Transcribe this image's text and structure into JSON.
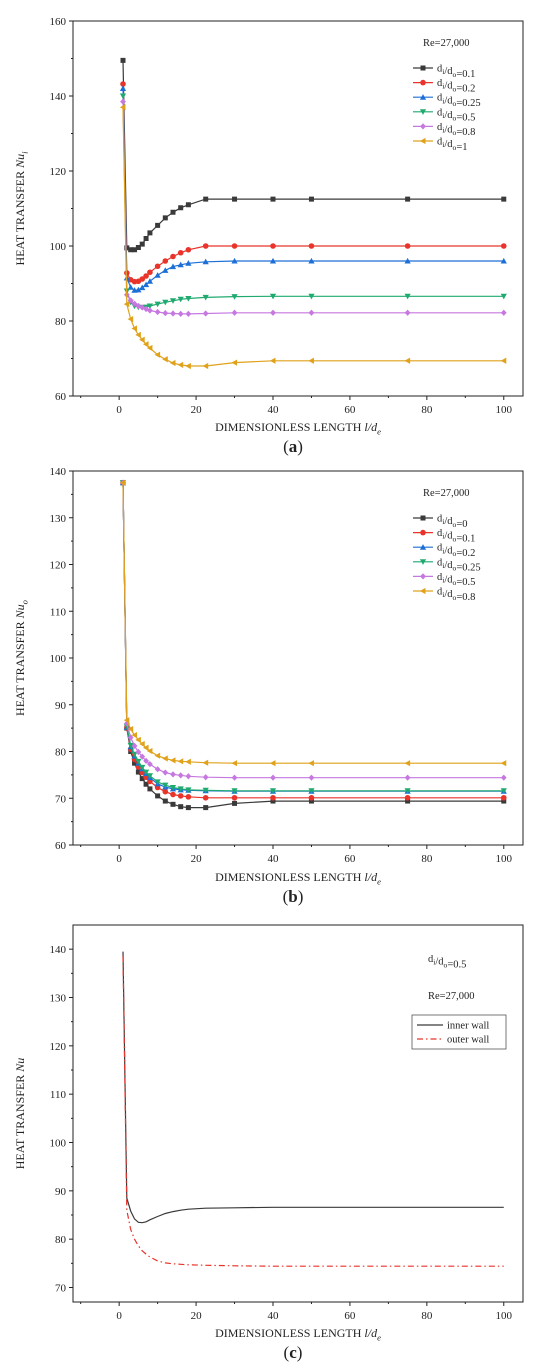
{
  "chart_data": [
    {
      "type": "line",
      "panel_label": "(a)",
      "xlabel": "DIMENSIONLESS LENGTH l/d",
      "xlabel_sub": "e",
      "ylabel": "HEAT TRANSFER Nu",
      "ylabel_sub": "i",
      "annotation": "Re=27,000",
      "xlim": [
        -12,
        105
      ],
      "ylim": [
        60,
        160
      ],
      "xticks": [
        0,
        20,
        40,
        60,
        80,
        100
      ],
      "yticks": [
        60,
        80,
        100,
        120,
        140,
        160
      ],
      "legend_location": "upper-right",
      "series": [
        {
          "name": "d_i/d_o=0.1",
          "color": "#3a3a3a",
          "marker": "square",
          "style": "solid",
          "x": [
            1,
            2,
            3,
            4,
            5,
            6,
            7,
            8,
            10,
            12,
            14,
            16,
            18,
            22.5,
            30,
            40,
            50,
            75,
            100
          ],
          "y": [
            149.5,
            99.5,
            99,
            99,
            99.6,
            100.5,
            102,
            103.5,
            105.5,
            107.5,
            109,
            110.2,
            111,
            112.5,
            112.5,
            112.5,
            112.5,
            112.5,
            112.5
          ]
        },
        {
          "name": "d_i/d_o=0.2",
          "color": "#e8342a",
          "marker": "circle",
          "style": "solid",
          "x": [
            1,
            2,
            3,
            4,
            5,
            6,
            7,
            8,
            10,
            12,
            14,
            16,
            18,
            22.5,
            30,
            40,
            50,
            75,
            100
          ],
          "y": [
            143.2,
            92.8,
            91,
            90.5,
            90.6,
            91.2,
            92,
            93,
            94.6,
            96,
            97.2,
            98.2,
            99,
            100,
            100,
            100,
            100,
            100,
            100
          ]
        },
        {
          "name": "d_i/d_o=0.25",
          "color": "#1c6fd6",
          "marker": "triangle-up",
          "style": "solid",
          "x": [
            1,
            2,
            3,
            4,
            5,
            6,
            7,
            8,
            10,
            12,
            14,
            16,
            18,
            22.5,
            30,
            40,
            50,
            75,
            100
          ],
          "y": [
            142,
            91.5,
            89,
            88.2,
            88.3,
            88.9,
            89.7,
            90.6,
            92.2,
            93.5,
            94.5,
            95,
            95.4,
            95.8,
            96,
            96,
            96,
            96,
            96
          ]
        },
        {
          "name": "d_i/d_o=0.5",
          "color": "#1faa6f",
          "marker": "triangle-down",
          "style": "solid",
          "x": [
            1,
            2,
            3,
            4,
            5,
            6,
            7,
            8,
            10,
            12,
            14,
            16,
            18,
            22.5,
            30,
            40,
            50,
            75,
            100
          ],
          "y": [
            140,
            88,
            85,
            84,
            83.7,
            83.6,
            83.7,
            84,
            84.5,
            85,
            85.4,
            85.8,
            86,
            86.3,
            86.5,
            86.6,
            86.6,
            86.6,
            86.6
          ]
        },
        {
          "name": "d_i/d_o=0.8",
          "color": "#c678e0",
          "marker": "diamond",
          "style": "solid",
          "x": [
            1,
            2,
            3,
            4,
            5,
            6,
            7,
            8,
            10,
            12,
            14,
            16,
            18,
            22.5,
            30,
            40,
            50,
            75,
            100
          ],
          "y": [
            138.5,
            87,
            85.5,
            84.6,
            84,
            83.6,
            83.2,
            82.8,
            82.4,
            82.1,
            82,
            81.9,
            81.9,
            82,
            82.2,
            82.2,
            82.2,
            82.2,
            82.2
          ]
        },
        {
          "name": "d_i/d_o=1",
          "color": "#e0a21a",
          "marker": "triangle-left",
          "style": "solid",
          "x": [
            1,
            2,
            3,
            4,
            5,
            6,
            7,
            8,
            10,
            12,
            14,
            16,
            18,
            22.5,
            30,
            40,
            50,
            75,
            100
          ],
          "y": [
            137,
            84.5,
            80.5,
            78,
            76.3,
            75,
            73.8,
            72.8,
            71,
            69.8,
            68.8,
            68.3,
            68,
            68,
            68.9,
            69.4,
            69.4,
            69.4,
            69.4
          ]
        }
      ]
    },
    {
      "type": "line",
      "panel_label": "(b)",
      "xlabel": "DIMENSIONLESS LENGTH l/d",
      "xlabel_sub": "e",
      "ylabel": "HEAT TRANSFER Nu",
      "ylabel_sub": "o",
      "annotation": "Re=27,000",
      "xlim": [
        -12,
        105
      ],
      "ylim": [
        60,
        140
      ],
      "xticks": [
        0,
        20,
        40,
        60,
        80,
        100
      ],
      "yticks": [
        60,
        70,
        80,
        90,
        100,
        110,
        120,
        130,
        140
      ],
      "legend_location": "upper-right",
      "series": [
        {
          "name": "d_i/d_o=0",
          "color": "#3a3a3a",
          "marker": "square",
          "style": "solid",
          "x": [
            1,
            2,
            3,
            4,
            5,
            6,
            7,
            8,
            10,
            12,
            14,
            16,
            18,
            22.5,
            30,
            40,
            50,
            75,
            100
          ],
          "y": [
            137.5,
            85,
            80,
            77.5,
            75.6,
            74.2,
            73,
            72,
            70.5,
            69.4,
            68.7,
            68.2,
            68,
            68,
            68.9,
            69.4,
            69.4,
            69.4,
            69.4
          ]
        },
        {
          "name": "d_i/d_o=0.1",
          "color": "#e8342a",
          "marker": "circle",
          "style": "solid",
          "x": [
            1,
            2,
            3,
            4,
            5,
            6,
            7,
            8,
            10,
            12,
            14,
            16,
            18,
            22.5,
            30,
            40,
            50,
            75,
            100
          ],
          "y": [
            137.5,
            85,
            80.5,
            78.3,
            76.7,
            75.5,
            74.5,
            73.6,
            72.3,
            71.4,
            70.8,
            70.5,
            70.3,
            70.1,
            70.1,
            70.1,
            70.1,
            70.1,
            70.1
          ]
        },
        {
          "name": "d_i/d_o=0.2",
          "color": "#1c6fd6",
          "marker": "triangle-up",
          "style": "solid",
          "x": [
            1,
            2,
            3,
            4,
            5,
            6,
            7,
            8,
            10,
            12,
            14,
            16,
            18,
            22.5,
            30,
            40,
            50,
            75,
            100
          ],
          "y": [
            137.5,
            85.2,
            81,
            79,
            77.5,
            76.3,
            75.3,
            74.4,
            73.1,
            72.4,
            72,
            71.8,
            71.7,
            71.6,
            71.5,
            71.5,
            71.5,
            71.5,
            71.5
          ]
        },
        {
          "name": "d_i/d_o=0.25",
          "color": "#1faa6f",
          "marker": "triangle-down",
          "style": "solid",
          "x": [
            1,
            2,
            3,
            4,
            5,
            6,
            7,
            8,
            10,
            12,
            14,
            16,
            18,
            22.5,
            30,
            40,
            50,
            75,
            100
          ],
          "y": [
            137.5,
            85.4,
            81.3,
            79.4,
            77.9,
            76.6,
            75.6,
            74.8,
            73.5,
            72.8,
            72.3,
            72,
            71.8,
            71.7,
            71.6,
            71.6,
            71.6,
            71.6,
            71.6
          ]
        },
        {
          "name": "d_i/d_o=0.5",
          "color": "#c678e0",
          "marker": "diamond",
          "style": "solid",
          "x": [
            1,
            2,
            3,
            4,
            5,
            6,
            7,
            8,
            10,
            12,
            14,
            16,
            18,
            22.5,
            30,
            40,
            50,
            75,
            100
          ],
          "y": [
            137.5,
            86,
            83,
            81.2,
            79.9,
            78.9,
            78,
            77.3,
            76.2,
            75.5,
            75.1,
            74.9,
            74.7,
            74.5,
            74.4,
            74.4,
            74.4,
            74.4,
            74.4
          ]
        },
        {
          "name": "d_i/d_o=0.8",
          "color": "#e0a21a",
          "marker": "triangle-left",
          "style": "solid",
          "x": [
            1,
            2,
            3,
            4,
            5,
            6,
            7,
            8,
            10,
            12,
            14,
            16,
            18,
            22.5,
            30,
            40,
            50,
            75,
            100
          ],
          "y": [
            137.5,
            86.7,
            84.8,
            83.5,
            82.5,
            81.6,
            80.8,
            80.1,
            79.1,
            78.5,
            78.1,
            77.9,
            77.8,
            77.6,
            77.5,
            77.5,
            77.5,
            77.5,
            77.5
          ]
        }
      ]
    },
    {
      "type": "line",
      "panel_label": "(c)",
      "xlabel": "DIMENSIONLESS LENGTH l/d",
      "xlabel_sub": "e",
      "ylabel": "HEAT TRANSFER Nu",
      "ylabel_sub": "",
      "annotation": "d_i/d_o=0.5",
      "annotation2": "Re=27,000",
      "xlim": [
        -12,
        105
      ],
      "ylim": [
        67,
        145
      ],
      "xticks": [
        0,
        20,
        40,
        60,
        80,
        100
      ],
      "yticks": [
        70,
        80,
        90,
        100,
        110,
        120,
        130,
        140
      ],
      "legend_location": "upper-right",
      "series": [
        {
          "name": "inner wall",
          "color": "#3a3a3a",
          "marker": "none",
          "style": "solid",
          "x": [
            1,
            2,
            3,
            4,
            5,
            6,
            7,
            8,
            10,
            12,
            14,
            16,
            18,
            22.5,
            30,
            40,
            50,
            75,
            100
          ],
          "y": [
            139.5,
            88.5,
            85.8,
            84.2,
            83.5,
            83.4,
            83.6,
            84,
            84.7,
            85.3,
            85.7,
            86,
            86.2,
            86.4,
            86.5,
            86.6,
            86.6,
            86.6,
            86.6
          ]
        },
        {
          "name": "outer wall",
          "color": "#e8342a",
          "marker": "none",
          "style": "dashdot",
          "x": [
            1,
            2,
            3,
            4,
            5,
            6,
            7,
            8,
            10,
            12,
            14,
            16,
            18,
            22.5,
            30,
            40,
            50,
            75,
            100
          ],
          "y": [
            138.5,
            86,
            82,
            80,
            78.6,
            77.6,
            76.9,
            76.3,
            75.5,
            75.1,
            74.9,
            74.8,
            74.7,
            74.6,
            74.5,
            74.4,
            74.4,
            74.4,
            74.4
          ]
        }
      ]
    }
  ]
}
